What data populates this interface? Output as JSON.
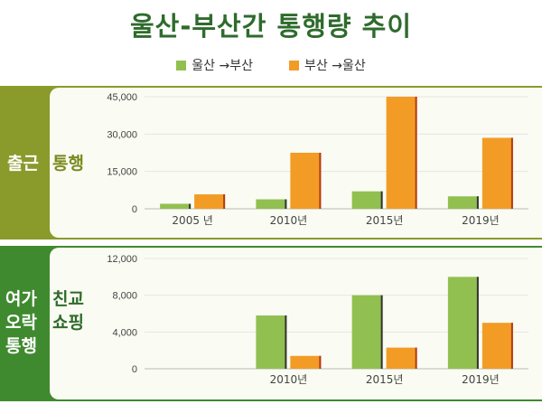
{
  "title": "울산-부산간 통행량 추이",
  "legend": [
    {
      "label": "울산 →부산",
      "color": "#92c050"
    },
    {
      "label": "부산 →울산",
      "color": "#f29c26"
    }
  ],
  "labels": {
    "commute_left": "출근",
    "commute_right": "통행",
    "leisure_left": "여가\n오락\n통행",
    "leisure_right": "친교\n쇼핑"
  },
  "chart_data": [
    {
      "type": "bar",
      "categories": [
        "2005 년",
        "2010년",
        "2015년",
        "2019년"
      ],
      "ylim": [
        0,
        45000
      ],
      "yticks": [
        "0",
        "15,000",
        "30,000",
        "45,000"
      ],
      "series": [
        {
          "name": "울산 →부산",
          "color": "#92c050",
          "values": [
            2000,
            3800,
            7000,
            5000
          ]
        },
        {
          "name": "부산 →울산",
          "color": "#f29c26",
          "values": [
            5800,
            22500,
            45000,
            28500
          ]
        }
      ]
    },
    {
      "type": "bar",
      "categories": [
        "",
        "2010년",
        "2015년",
        "2019년"
      ],
      "ylim": [
        0,
        12000
      ],
      "yticks": [
        "0",
        "4,000",
        "8,000",
        "12,000"
      ],
      "series": [
        {
          "name": "울산 →부산",
          "color": "#92c050",
          "values": [
            0,
            5800,
            8000,
            10000
          ]
        },
        {
          "name": "부산 →울산",
          "color": "#f29c26",
          "values": [
            0,
            1400,
            2300,
            5000
          ]
        }
      ]
    }
  ]
}
